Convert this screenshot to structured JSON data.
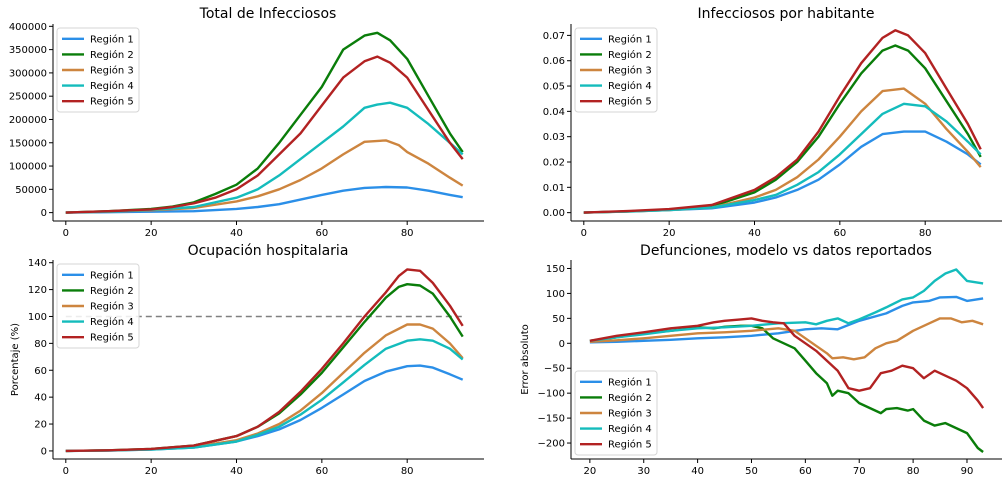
{
  "colors": {
    "Región 1": "#2b8fe8",
    "Región 2": "#0a7d0a",
    "Región 3": "#cd853f",
    "Región 4": "#14bcbc",
    "Región 5": "#b22222",
    "reference_line": "#808080"
  },
  "chart_data": [
    {
      "type": "line",
      "title": "Total de Infecciosos",
      "xlabel": "",
      "ylabel": "",
      "xlim": [
        -3,
        98
      ],
      "ylim": [
        -18000,
        405000
      ],
      "xticks": [
        0,
        20,
        40,
        60,
        80
      ],
      "yticks": [
        0,
        50000,
        100000,
        150000,
        200000,
        250000,
        300000,
        350000,
        400000
      ],
      "legend": "top-left",
      "grid": false,
      "series": [
        {
          "name": "Región 1",
          "x": [
            0,
            10,
            20,
            30,
            40,
            45,
            50,
            55,
            60,
            65,
            70,
            75,
            80,
            85,
            90,
            93
          ],
          "y": [
            0,
            1000,
            2000,
            3000,
            8000,
            12000,
            18000,
            28000,
            38000,
            47000,
            53000,
            55000,
            54000,
            47000,
            38000,
            33000
          ]
        },
        {
          "name": "Región 2",
          "x": [
            0,
            10,
            20,
            25,
            30,
            35,
            40,
            45,
            50,
            55,
            60,
            65,
            70,
            73,
            76,
            80,
            85,
            90,
            93
          ],
          "y": [
            0,
            3000,
            8000,
            13000,
            22000,
            40000,
            60000,
            95000,
            150000,
            210000,
            270000,
            350000,
            380000,
            386000,
            370000,
            330000,
            250000,
            170000,
            130000
          ]
        },
        {
          "name": "Región 3",
          "x": [
            0,
            10,
            20,
            30,
            40,
            45,
            50,
            55,
            60,
            65,
            70,
            75,
            78,
            80,
            85,
            90,
            93
          ],
          "y": [
            0,
            2000,
            5000,
            10000,
            24000,
            35000,
            50000,
            70000,
            95000,
            125000,
            152000,
            155000,
            145000,
            130000,
            105000,
            75000,
            58000
          ]
        },
        {
          "name": "Región 4",
          "x": [
            0,
            10,
            20,
            30,
            40,
            45,
            50,
            55,
            60,
            65,
            70,
            73,
            76,
            80,
            85,
            90,
            93
          ],
          "y": [
            0,
            2000,
            6000,
            12000,
            32000,
            50000,
            80000,
            115000,
            150000,
            185000,
            225000,
            232000,
            236000,
            225000,
            190000,
            150000,
            125000
          ]
        },
        {
          "name": "Región 5",
          "x": [
            0,
            10,
            20,
            25,
            30,
            35,
            40,
            45,
            50,
            55,
            60,
            65,
            70,
            73,
            76,
            80,
            85,
            90,
            93
          ],
          "y": [
            0,
            3000,
            7000,
            12000,
            20000,
            32000,
            50000,
            80000,
            125000,
            170000,
            230000,
            290000,
            325000,
            335000,
            322000,
            290000,
            220000,
            150000,
            115000
          ]
        }
      ]
    },
    {
      "type": "line",
      "title": "Infecciosos por habitante",
      "xlabel": "",
      "ylabel": "",
      "xlim": [
        -3,
        98
      ],
      "ylim": [
        -0.0033,
        0.0745
      ],
      "xticks": [
        0,
        20,
        40,
        60,
        80
      ],
      "yticks": [
        0.0,
        0.01,
        0.02,
        0.03,
        0.04,
        0.05,
        0.06,
        0.07
      ],
      "legend": "top-left",
      "grid": false,
      "series": [
        {
          "name": "Región 1",
          "x": [
            0,
            10,
            20,
            30,
            40,
            45,
            50,
            55,
            60,
            65,
            70,
            75,
            80,
            85,
            90,
            93
          ],
          "y": [
            0,
            0.0005,
            0.001,
            0.0017,
            0.004,
            0.006,
            0.009,
            0.013,
            0.019,
            0.026,
            0.031,
            0.032,
            0.032,
            0.028,
            0.023,
            0.019
          ]
        },
        {
          "name": "Región 2",
          "x": [
            0,
            10,
            20,
            30,
            40,
            45,
            50,
            55,
            60,
            65,
            70,
            73,
            76,
            80,
            85,
            90,
            93
          ],
          "y": [
            0,
            0.0005,
            0.0012,
            0.0025,
            0.008,
            0.013,
            0.02,
            0.03,
            0.043,
            0.055,
            0.064,
            0.066,
            0.064,
            0.057,
            0.044,
            0.031,
            0.022
          ]
        },
        {
          "name": "Región 3",
          "x": [
            0,
            10,
            20,
            30,
            40,
            45,
            50,
            55,
            60,
            65,
            70,
            75,
            80,
            85,
            90,
            93
          ],
          "y": [
            0,
            0.0004,
            0.001,
            0.002,
            0.006,
            0.009,
            0.014,
            0.021,
            0.03,
            0.04,
            0.048,
            0.049,
            0.043,
            0.033,
            0.024,
            0.018
          ]
        },
        {
          "name": "Región 4",
          "x": [
            0,
            10,
            20,
            30,
            40,
            45,
            50,
            55,
            60,
            65,
            70,
            75,
            80,
            85,
            90,
            93
          ],
          "y": [
            0,
            0.0004,
            0.001,
            0.002,
            0.005,
            0.007,
            0.011,
            0.016,
            0.023,
            0.031,
            0.039,
            0.043,
            0.042,
            0.036,
            0.028,
            0.023
          ]
        },
        {
          "name": "Región 5",
          "x": [
            0,
            10,
            20,
            30,
            40,
            45,
            50,
            55,
            60,
            65,
            70,
            73,
            76,
            80,
            85,
            90,
            93
          ],
          "y": [
            0,
            0.0006,
            0.0014,
            0.003,
            0.009,
            0.014,
            0.021,
            0.032,
            0.046,
            0.059,
            0.069,
            0.072,
            0.07,
            0.063,
            0.049,
            0.035,
            0.025
          ]
        }
      ]
    },
    {
      "type": "line",
      "title": "Ocupación hospitalaria",
      "xlabel": "",
      "ylabel": "Porcentaje (%)",
      "xlim": [
        -3,
        98
      ],
      "ylim": [
        -6,
        142
      ],
      "xticks": [
        0,
        20,
        40,
        60,
        80
      ],
      "yticks": [
        0,
        20,
        40,
        60,
        80,
        100,
        120,
        140
      ],
      "legend": "top-left",
      "grid": false,
      "reference_line": {
        "y": 100,
        "x_from": 0,
        "x_to": 93
      },
      "series": [
        {
          "name": "Región 1",
          "x": [
            0,
            10,
            20,
            30,
            40,
            45,
            50,
            55,
            60,
            65,
            70,
            75,
            80,
            83,
            86,
            90,
            93
          ],
          "y": [
            0,
            0.3,
            1,
            2.5,
            7,
            11,
            16,
            23,
            32,
            42,
            52,
            59,
            63,
            63.5,
            62,
            57,
            53
          ]
        },
        {
          "name": "Región 2",
          "x": [
            0,
            10,
            20,
            30,
            40,
            45,
            50,
            55,
            60,
            65,
            70,
            75,
            78,
            80,
            83,
            86,
            90,
            93
          ],
          "y": [
            0,
            0.5,
            1.5,
            4,
            11,
            18,
            28,
            42,
            58,
            77,
            96,
            114,
            122,
            124,
            123,
            117,
            100,
            85
          ]
        },
        {
          "name": "Región 3",
          "x": [
            0,
            10,
            20,
            30,
            40,
            45,
            50,
            55,
            60,
            65,
            70,
            75,
            80,
            83,
            86,
            90,
            93
          ],
          "y": [
            0,
            0.4,
            1.2,
            3,
            8,
            13,
            20,
            30,
            43,
            58,
            73,
            86,
            94,
            94,
            91,
            80,
            69
          ]
        },
        {
          "name": "Región 4",
          "x": [
            0,
            10,
            20,
            30,
            40,
            45,
            50,
            55,
            60,
            65,
            70,
            75,
            80,
            83,
            86,
            90,
            93
          ],
          "y": [
            0,
            0.3,
            1,
            2.5,
            7,
            12,
            18,
            27,
            38,
            51,
            64,
            76,
            82,
            83,
            82,
            76,
            68
          ]
        },
        {
          "name": "Región 5",
          "x": [
            0,
            10,
            20,
            30,
            40,
            45,
            50,
            55,
            60,
            65,
            70,
            75,
            78,
            80,
            83,
            86,
            90,
            93
          ],
          "y": [
            0,
            0.5,
            1.5,
            4,
            11,
            18,
            29,
            44,
            61,
            80,
            100,
            118,
            130,
            135,
            134,
            125,
            108,
            93
          ]
        }
      ]
    },
    {
      "type": "line",
      "title": "Defunciones, modelo vs datos reportados",
      "xlabel": "",
      "ylabel": "Error absoluto",
      "xlim": [
        16.5,
        96.5
      ],
      "ylim": [
        -232,
        167
      ],
      "xticks": [
        20,
        30,
        40,
        50,
        60,
        70,
        80,
        90
      ],
      "yticks": [
        -200,
        -150,
        -100,
        -50,
        0,
        50,
        100,
        150
      ],
      "legend": "lower-left",
      "grid": false,
      "series": [
        {
          "name": "Región 1",
          "x": [
            20,
            25,
            30,
            35,
            40,
            45,
            50,
            55,
            60,
            63,
            66,
            70,
            75,
            78,
            80,
            83,
            85,
            88,
            90,
            93
          ],
          "y": [
            2,
            3,
            5,
            7,
            10,
            12,
            15,
            20,
            28,
            30,
            28,
            45,
            60,
            75,
            82,
            85,
            92,
            93,
            85,
            90
          ]
        },
        {
          "name": "Región 2",
          "x": [
            20,
            25,
            30,
            35,
            40,
            43,
            45,
            48,
            50,
            52,
            54,
            56,
            58,
            60,
            62,
            64,
            65,
            66,
            68,
            70,
            72,
            74,
            75,
            77,
            79,
            80,
            82,
            84,
            86,
            88,
            90,
            92,
            93
          ],
          "y": [
            5,
            12,
            20,
            25,
            32,
            30,
            33,
            35,
            35,
            30,
            10,
            0,
            -10,
            -35,
            -60,
            -80,
            -105,
            -95,
            -100,
            -120,
            -130,
            -140,
            -132,
            -130,
            -135,
            -132,
            -155,
            -165,
            -160,
            -170,
            -180,
            -210,
            -218
          ]
        },
        {
          "name": "Región 3",
          "x": [
            20,
            25,
            30,
            35,
            40,
            45,
            50,
            55,
            58,
            60,
            62,
            64,
            65,
            67,
            69,
            71,
            73,
            75,
            77,
            80,
            83,
            85,
            87,
            89,
            91,
            93
          ],
          "y": [
            3,
            6,
            10,
            15,
            20,
            22,
            25,
            30,
            25,
            10,
            -5,
            -20,
            -30,
            -28,
            -32,
            -28,
            -10,
            0,
            5,
            25,
            40,
            50,
            50,
            42,
            45,
            38
          ]
        },
        {
          "name": "Región 4",
          "x": [
            20,
            25,
            30,
            35,
            40,
            45,
            50,
            55,
            60,
            62,
            64,
            66,
            68,
            70,
            73,
            75,
            78,
            80,
            82,
            84,
            86,
            88,
            90,
            93
          ],
          "y": [
            5,
            12,
            18,
            25,
            30,
            32,
            35,
            40,
            42,
            38,
            45,
            50,
            40,
            48,
            62,
            72,
            88,
            92,
            105,
            125,
            140,
            148,
            125,
            120
          ]
        },
        {
          "name": "Región 5",
          "x": [
            20,
            25,
            30,
            35,
            40,
            43,
            45,
            48,
            50,
            52,
            54,
            56,
            58,
            60,
            62,
            64,
            66,
            68,
            70,
            72,
            74,
            76,
            78,
            80,
            82,
            84,
            86,
            88,
            90,
            92,
            93
          ],
          "y": [
            5,
            15,
            22,
            30,
            35,
            42,
            45,
            48,
            50,
            45,
            42,
            40,
            15,
            0,
            -15,
            -35,
            -55,
            -90,
            -95,
            -90,
            -60,
            -55,
            -45,
            -50,
            -70,
            -55,
            -65,
            -75,
            -90,
            -115,
            -130
          ]
        }
      ]
    }
  ]
}
